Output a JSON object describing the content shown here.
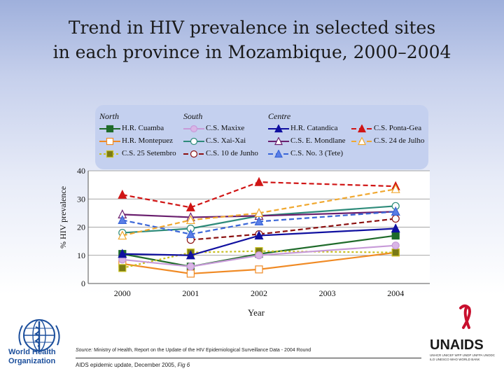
{
  "title_lines": [
    "Trend in HIV prevalence in selected sites",
    "in each province in Mozambique, 2000–2004"
  ],
  "legend": {
    "groups": [
      {
        "heading": "North",
        "items": [
          {
            "label": "H.R. Cuamba",
            "series": "hr_cuamba"
          },
          {
            "label": "H.R. Montepuez",
            "series": "hr_montepuez"
          },
          {
            "label": "C.S. 25 Setembro",
            "series": "cs_25_setembro"
          }
        ]
      },
      {
        "heading": "South",
        "items": [
          {
            "label": "C.S. Maxixe",
            "series": "cs_maxixe"
          },
          {
            "label": "C.S. Xai-Xai",
            "series": "cs_xai_xai"
          },
          {
            "label": "C.S. 10 de Junho",
            "series": "cs_10_de_junho"
          }
        ]
      },
      {
        "heading": "Centre",
        "items": [
          {
            "label": "H.R. Catandica",
            "series": "hr_catandica"
          },
          {
            "label": "C.S. E. Mondlane",
            "series": "cs_e_mondlane"
          },
          {
            "label": "C.S. No. 3 (Tete)",
            "series": "cs_no3_tete"
          },
          {
            "label": "C.S. Ponta-Gea",
            "series": "cs_ponta_gea"
          },
          {
            "label": "C.S. 24 de Julho",
            "series": "cs_24_de_julho"
          }
        ]
      }
    ]
  },
  "chart_data": {
    "type": "line",
    "title": "Trend in HIV prevalence in selected sites in each province in Mozambique, 2000–2004",
    "xlabel": "Year",
    "ylabel": "% HIV prevalence",
    "x": [
      2000,
      2001,
      2002,
      2003,
      2004
    ],
    "xticks": [
      "2000",
      "2001",
      "2002",
      "2003",
      "2004"
    ],
    "yticks": [
      "0",
      "10",
      "20",
      "30",
      "40"
    ],
    "ylim": [
      0,
      40
    ],
    "series": [
      {
        "id": "hr_cuamba",
        "name": "H.R. Cuamba",
        "color": "#1f6b2a",
        "marker": "square",
        "filled": true,
        "dash": "solid",
        "x": [
          2000,
          2001,
          2002,
          2004
        ],
        "y": [
          10.5,
          6,
          10.5,
          17
        ]
      },
      {
        "id": "hr_montepuez",
        "name": "H.R. Montepuez",
        "color": "#f08a24",
        "marker": "square",
        "filled": false,
        "dash": "solid",
        "x": [
          2000,
          2001,
          2002,
          2004
        ],
        "y": [
          7,
          3.5,
          5,
          11
        ]
      },
      {
        "id": "cs_25_setembro",
        "name": "C.S. 25 Setembro",
        "color": "#c8c020",
        "marker": "square",
        "filled": true,
        "fill": "#7a7a14",
        "dash": "dotted",
        "x": [
          2000,
          2001,
          2002,
          2004
        ],
        "y": [
          5.5,
          11,
          11.5,
          11
        ]
      },
      {
        "id": "cs_maxixe",
        "name": "C.S. Maxixe",
        "color": "#c79ad8",
        "marker": "circle",
        "filled": true,
        "fill": "#d9b5e6",
        "dash": "solid",
        "x": [
          2000,
          2001,
          2002,
          2004
        ],
        "y": [
          8.5,
          6,
          10,
          13.5
        ]
      },
      {
        "id": "cs_xai_xai",
        "name": "C.S. Xai-Xai",
        "color": "#2e8b7a",
        "marker": "circle",
        "filled": false,
        "dash": "solid",
        "x": [
          2000,
          2001,
          2002,
          2004
        ],
        "y": [
          18,
          19.5,
          24,
          27.5
        ]
      },
      {
        "id": "cs_10_de_junho",
        "name": "C.S. 10 de Junho",
        "color": "#8b1010",
        "marker": "circle",
        "filled": false,
        "dash": "dashed",
        "x": [
          2001,
          2002,
          2004
        ],
        "y": [
          15.5,
          17.5,
          23
        ]
      },
      {
        "id": "hr_catandica",
        "name": "H.R. Catandica",
        "color": "#1010a0",
        "marker": "triangle",
        "filled": true,
        "dash": "solid",
        "x": [
          2000,
          2001,
          2002,
          2004
        ],
        "y": [
          10.5,
          10,
          17,
          19.5
        ]
      },
      {
        "id": "cs_e_mondlane",
        "name": "C.S. E. Mondlane",
        "color": "#6a1f6e",
        "marker": "triangle",
        "filled": false,
        "dash": "solid",
        "x": [
          2000,
          2001,
          2002,
          2004
        ],
        "y": [
          24.5,
          23.5,
          24,
          25.5
        ]
      },
      {
        "id": "cs_no3_tete",
        "name": "C.S. No. 3 (Tete)",
        "color": "#3a66d8",
        "marker": "triangle",
        "filled": true,
        "fill": "#5a7ee6",
        "dash": "dashed",
        "x": [
          2000,
          2001,
          2002,
          2004
        ],
        "y": [
          22.5,
          17.5,
          22,
          25.5
        ]
      },
      {
        "id": "cs_ponta_gea",
        "name": "C.S. Ponta-Gea",
        "color": "#d01515",
        "marker": "triangle",
        "filled": true,
        "dash": "dashed",
        "x": [
          2000,
          2001,
          2002,
          2004
        ],
        "y": [
          31.5,
          27,
          36,
          34.5
        ]
      },
      {
        "id": "cs_24_de_julho",
        "name": "C.S. 24 de Julho",
        "color": "#f0a830",
        "marker": "triangle",
        "filled": false,
        "dash": "dashed",
        "x": [
          2000,
          2001,
          2002,
          2004
        ],
        "y": [
          17,
          22.5,
          25,
          33.5
        ]
      }
    ]
  },
  "footer": {
    "source_label": "Source:",
    "source_text": "Ministry of Health, Report on the Update of the HIV Epidemiological Surveillance Data - 2004 Round",
    "update_text": "AIDS epidemic update, December 2005,",
    "fig_label": "Fig 6"
  },
  "logos": {
    "who_line1": "World Health",
    "who_line2": "Organization",
    "unaids_name": "UNAIDS",
    "unaids_subtitle": "UNHCR UNICEF WFP UNDP UNFPA UNODC ILO UNESCO WHO WORLD BANK"
  }
}
